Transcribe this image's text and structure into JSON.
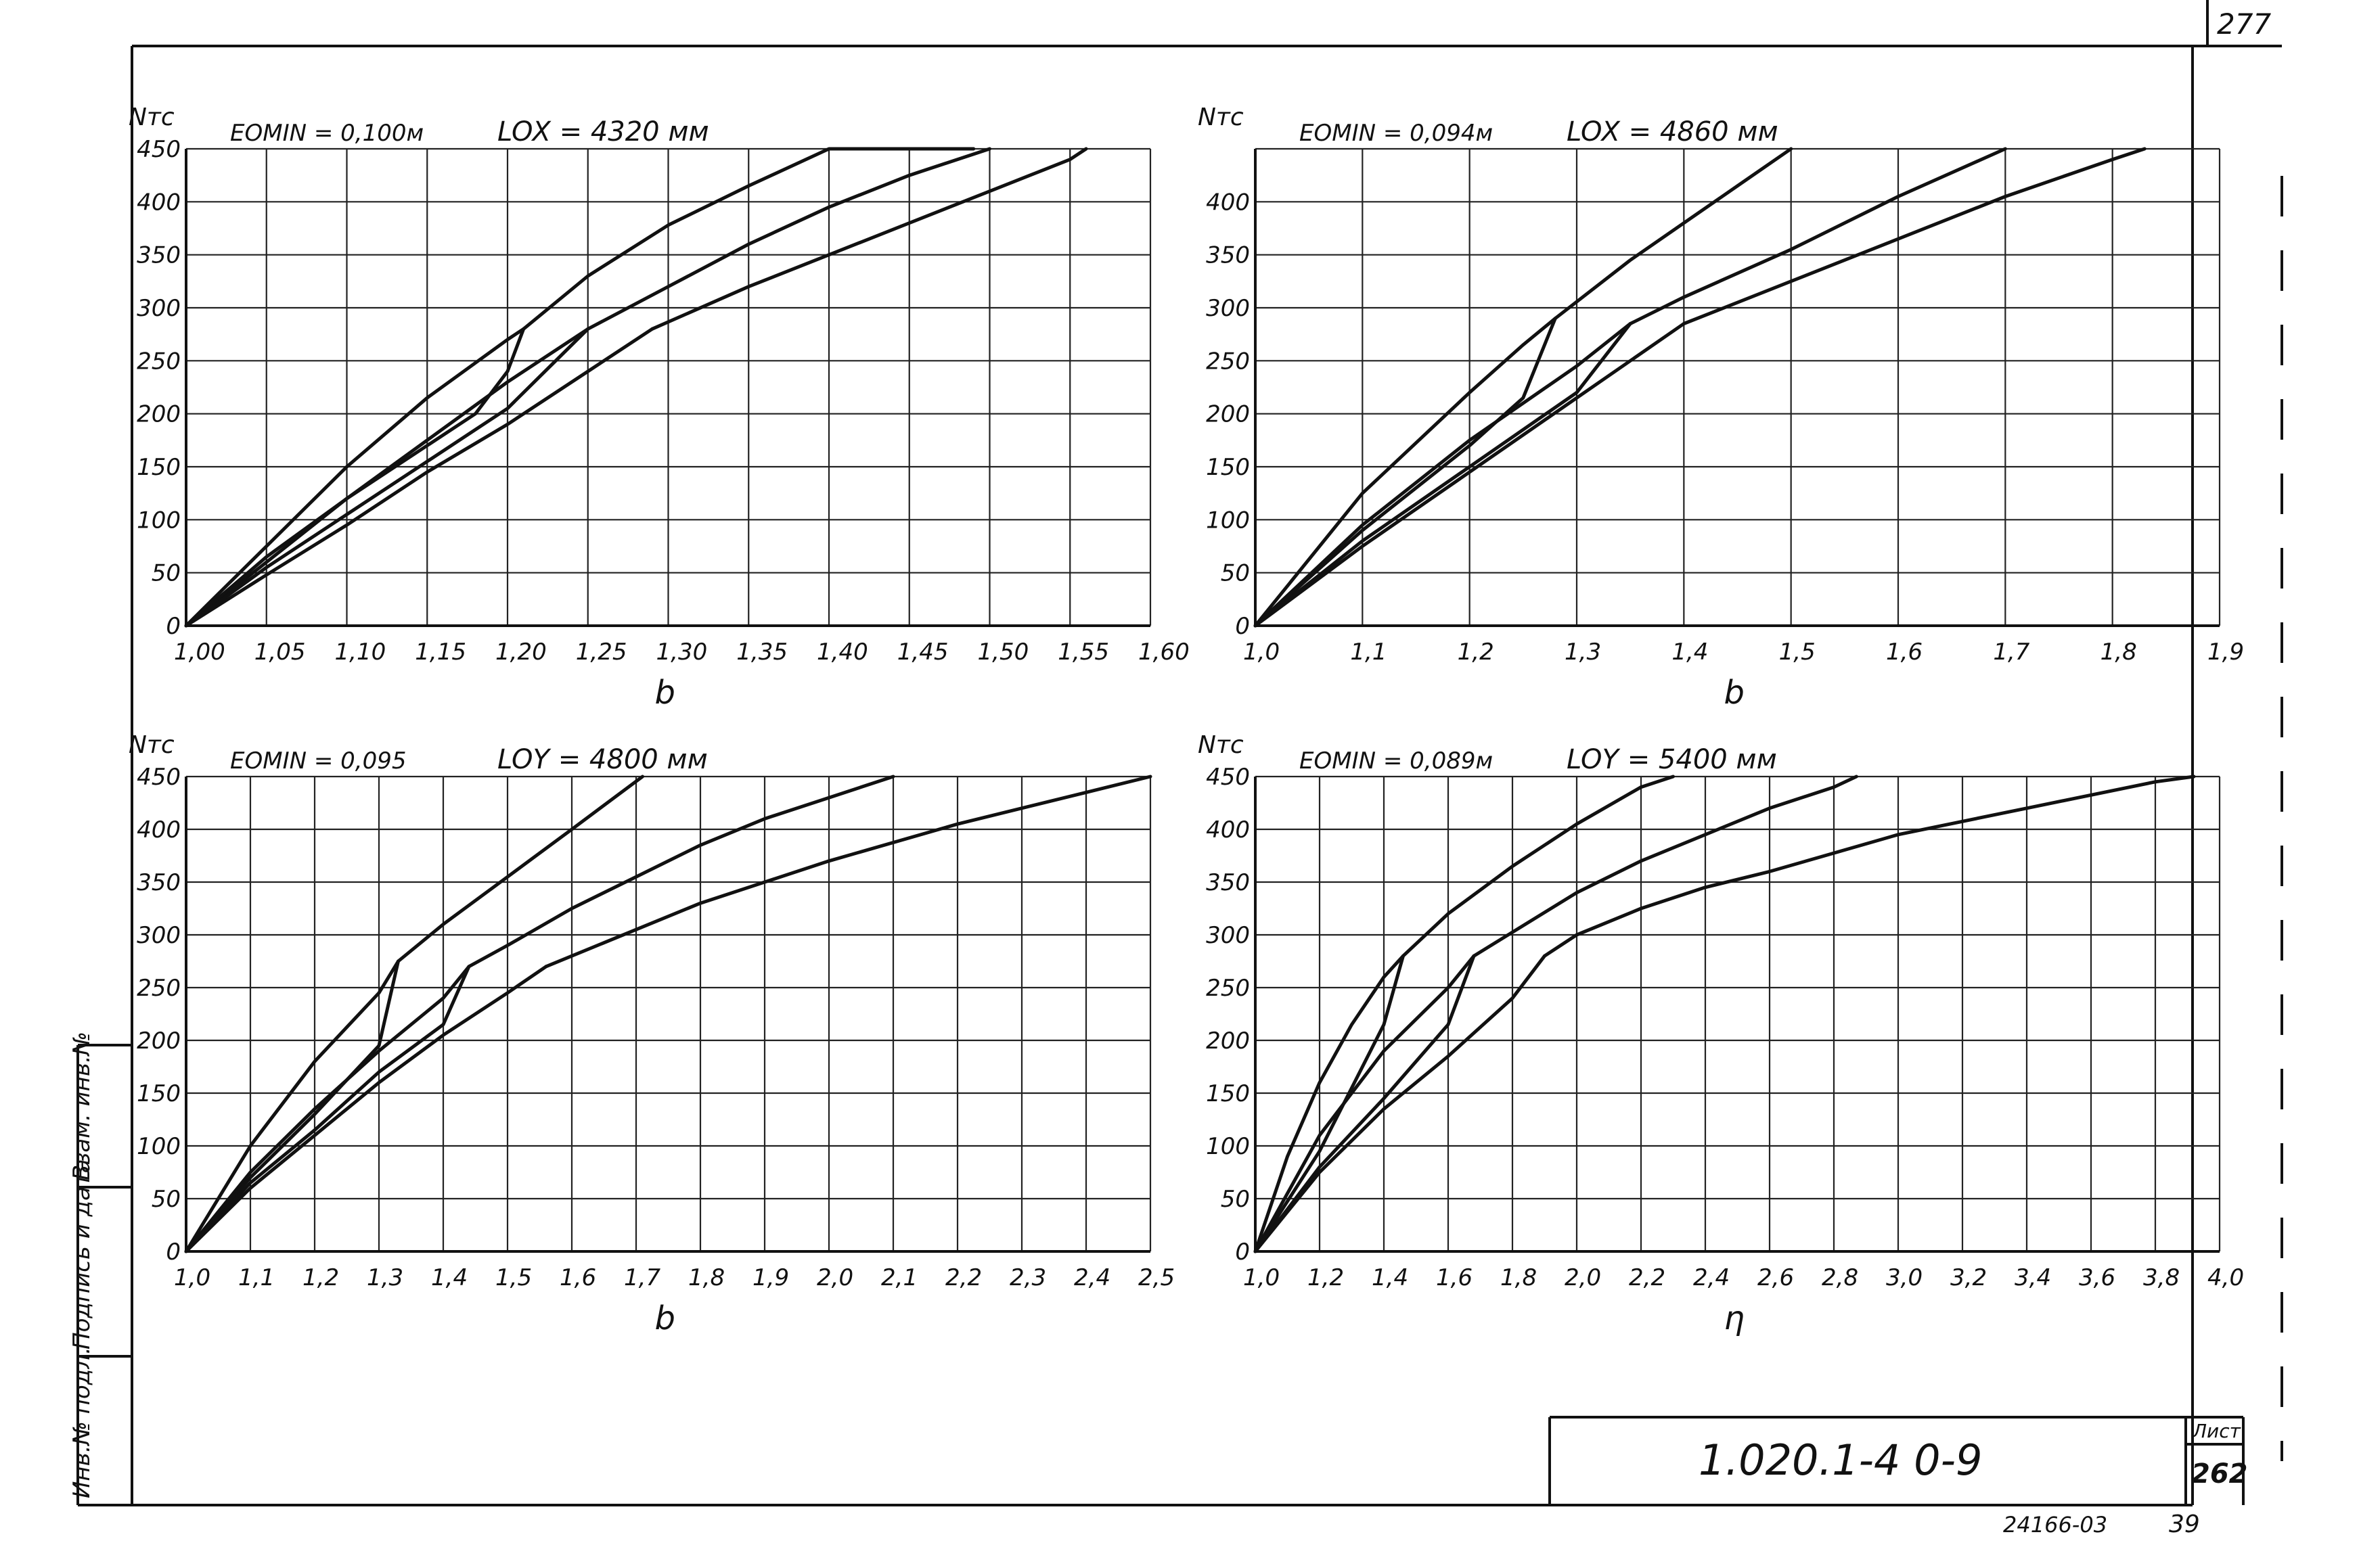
{
  "sheet": {
    "corner_number": "277",
    "doc_code": "1.020.1-4  0-9",
    "sheet_label": "Лист",
    "sheet_number": "262",
    "bottom_code": "24166-03",
    "bottom_page": "39",
    "side_stamp": [
      "Инв.№ подл.",
      "Подпись и дата",
      "Взам. инв.№"
    ],
    "colors": {
      "ink": "#111111",
      "paper": "#ffffff"
    }
  },
  "chart_data": [
    {
      "type": "line",
      "ylabel": "Nтс",
      "param_label": "EOMIN = 0,100м",
      "length_label": "LOX = 4320 мм",
      "xlabel": "b",
      "xlim": [
        1.0,
        1.6
      ],
      "ylim": [
        0,
        450
      ],
      "grid": true,
      "x_ticks": [
        1.0,
        1.05,
        1.1,
        1.15,
        1.2,
        1.25,
        1.3,
        1.35,
        1.4,
        1.45,
        1.5,
        1.55,
        1.6
      ],
      "x_tick_labels": [
        "1,00",
        "1,05",
        "1,10",
        "1,15",
        "1,20",
        "1,25",
        "1,30",
        "1,35",
        "1,40",
        "1,45",
        "1,50",
        "1,55",
        "1,60"
      ],
      "y_ticks": [
        0,
        50,
        100,
        150,
        200,
        250,
        300,
        350,
        400,
        450
      ],
      "y_tick_labels": [
        "0",
        "50",
        "100",
        "150",
        "200",
        "250",
        "300",
        "350",
        "400",
        "450"
      ],
      "series": [
        {
          "x": [
            1.0,
            1.05,
            1.1,
            1.15,
            1.2,
            1.21
          ],
          "y": [
            0,
            75,
            150,
            215,
            270,
            280
          ]
        },
        {
          "x": [
            1.0,
            1.05,
            1.1,
            1.15,
            1.2,
            1.25
          ],
          "y": [
            0,
            60,
            120,
            175,
            230,
            280
          ]
        },
        {
          "x": [
            1.0,
            1.05,
            1.1,
            1.15,
            1.2,
            1.25,
            1.29
          ],
          "y": [
            0,
            48,
            95,
            145,
            190,
            240,
            280
          ]
        },
        {
          "x": [
            1.0,
            1.05,
            1.1,
            1.15,
            1.18,
            1.2,
            1.21
          ],
          "y": [
            0,
            65,
            120,
            170,
            200,
            240,
            280
          ]
        },
        {
          "x": [
            1.0,
            1.05,
            1.1,
            1.15,
            1.2,
            1.23,
            1.25
          ],
          "y": [
            0,
            55,
            105,
            155,
            205,
            250,
            280
          ]
        },
        {
          "x": [
            1.21,
            1.25,
            1.3,
            1.35,
            1.4,
            1.45,
            1.49
          ],
          "y": [
            280,
            330,
            378,
            415,
            450,
            450,
            450
          ]
        },
        {
          "x": [
            1.25,
            1.3,
            1.35,
            1.4,
            1.45,
            1.5
          ],
          "y": [
            280,
            320,
            360,
            395,
            425,
            450
          ]
        },
        {
          "x": [
            1.29,
            1.35,
            1.4,
            1.45,
            1.5,
            1.55,
            1.56
          ],
          "y": [
            280,
            320,
            350,
            380,
            410,
            440,
            450
          ]
        }
      ]
    },
    {
      "type": "line",
      "ylabel": "Nтс",
      "param_label": "EOMIN = 0,094м",
      "length_label": "LOX = 4860 мм",
      "xlabel": "b",
      "xlim": [
        1.0,
        1.9
      ],
      "ylim": [
        0,
        450
      ],
      "grid": true,
      "x_ticks": [
        1.0,
        1.1,
        1.2,
        1.3,
        1.4,
        1.5,
        1.6,
        1.7,
        1.8,
        1.9
      ],
      "x_tick_labels": [
        "1,0",
        "1,1",
        "1,2",
        "1,3",
        "1,4",
        "1,5",
        "1,6",
        "1,7",
        "1,8",
        "1,9"
      ],
      "y_ticks": [
        0,
        50,
        100,
        150,
        200,
        250,
        300,
        350,
        400,
        450
      ],
      "y_tick_labels": [
        "0",
        "50",
        "100",
        "150",
        "200",
        "250",
        "300",
        "350",
        "400",
        ""
      ],
      "series": [
        {
          "x": [
            1.0,
            1.1,
            1.2,
            1.25,
            1.28
          ],
          "y": [
            0,
            125,
            220,
            265,
            290
          ]
        },
        {
          "x": [
            1.0,
            1.1,
            1.2,
            1.3,
            1.35
          ],
          "y": [
            0,
            95,
            175,
            245,
            285
          ]
        },
        {
          "x": [
            1.0,
            1.1,
            1.2,
            1.3,
            1.4
          ],
          "y": [
            0,
            75,
            145,
            215,
            285
          ]
        },
        {
          "x": [
            1.0,
            1.1,
            1.2,
            1.25,
            1.28
          ],
          "y": [
            0,
            90,
            170,
            215,
            290
          ]
        },
        {
          "x": [
            1.0,
            1.1,
            1.2,
            1.3,
            1.35
          ],
          "y": [
            0,
            80,
            150,
            220,
            285
          ]
        },
        {
          "x": [
            1.28,
            1.35,
            1.4,
            1.45,
            1.5
          ],
          "y": [
            290,
            345,
            380,
            415,
            450
          ]
        },
        {
          "x": [
            1.35,
            1.4,
            1.5,
            1.6,
            1.7
          ],
          "y": [
            285,
            310,
            355,
            405,
            450
          ]
        },
        {
          "x": [
            1.4,
            1.5,
            1.6,
            1.7,
            1.8,
            1.83
          ],
          "y": [
            285,
            325,
            365,
            405,
            440,
            450
          ]
        }
      ]
    },
    {
      "type": "line",
      "ylabel": "Nтс",
      "param_label": "EOMIN = 0,095",
      "length_label": "LOY = 4800 мм",
      "xlabel": "b",
      "xlim": [
        1.0,
        2.5
      ],
      "ylim": [
        0,
        450
      ],
      "grid": true,
      "x_ticks": [
        1.0,
        1.1,
        1.2,
        1.3,
        1.4,
        1.5,
        1.6,
        1.7,
        1.8,
        1.9,
        2.0,
        2.1,
        2.2,
        2.3,
        2.4,
        2.5
      ],
      "x_tick_labels": [
        "1,0",
        "1,1",
        "1,2",
        "1,3",
        "1,4",
        "1,5",
        "1,6",
        "1,7",
        "1,8",
        "1,9",
        "2,0",
        "2,1",
        "2,2",
        "2,3",
        "2,4",
        "2,5"
      ],
      "y_ticks": [
        0,
        50,
        100,
        150,
        200,
        250,
        300,
        350,
        400,
        450
      ],
      "y_tick_labels": [
        "0",
        "50",
        "100",
        "150",
        "200",
        "250",
        "300",
        "350",
        "400",
        "450"
      ],
      "series": [
        {
          "x": [
            1.0,
            1.1,
            1.2,
            1.3,
            1.33
          ],
          "y": [
            0,
            100,
            180,
            245,
            275
          ]
        },
        {
          "x": [
            1.0,
            1.1,
            1.2,
            1.3,
            1.4,
            1.44
          ],
          "y": [
            0,
            75,
            135,
            190,
            240,
            270
          ]
        },
        {
          "x": [
            1.0,
            1.1,
            1.2,
            1.3,
            1.4,
            1.5,
            1.56
          ],
          "y": [
            0,
            60,
            110,
            160,
            205,
            245,
            270
          ]
        },
        {
          "x": [
            1.0,
            1.1,
            1.2,
            1.3,
            1.33
          ],
          "y": [
            0,
            70,
            130,
            195,
            275
          ]
        },
        {
          "x": [
            1.0,
            1.1,
            1.2,
            1.3,
            1.4,
            1.44
          ],
          "y": [
            0,
            65,
            115,
            170,
            215,
            270
          ]
        },
        {
          "x": [
            1.33,
            1.4,
            1.5,
            1.6,
            1.71
          ],
          "y": [
            275,
            310,
            355,
            400,
            450
          ]
        },
        {
          "x": [
            1.44,
            1.5,
            1.6,
            1.7,
            1.8,
            1.9,
            2.0,
            2.1
          ],
          "y": [
            270,
            290,
            325,
            355,
            385,
            410,
            430,
            450
          ]
        },
        {
          "x": [
            1.56,
            1.6,
            1.8,
            2.0,
            2.2,
            2.4,
            2.5
          ],
          "y": [
            270,
            280,
            330,
            370,
            405,
            435,
            450
          ]
        }
      ]
    },
    {
      "type": "line",
      "ylabel": "Nтс",
      "param_label": "EOMIN = 0,089м",
      "length_label": "LOY = 5400 мм",
      "xlabel": "η",
      "xlim": [
        1.0,
        4.0
      ],
      "ylim": [
        0,
        450
      ],
      "grid": true,
      "x_ticks": [
        1.0,
        1.2,
        1.4,
        1.6,
        1.8,
        2.0,
        2.2,
        2.4,
        2.6,
        2.8,
        3.0,
        3.2,
        3.4,
        3.6,
        3.8,
        4.0
      ],
      "x_tick_labels": [
        "1,0",
        "1,2",
        "1,4",
        "1,6",
        "1,8",
        "2,0",
        "2,2",
        "2,4",
        "2,6",
        "2,8",
        "3,0",
        "3,2",
        "3,4",
        "3,6",
        "3,8",
        "4,0"
      ],
      "y_ticks": [
        0,
        50,
        100,
        150,
        200,
        250,
        300,
        350,
        400,
        450
      ],
      "y_tick_labels": [
        "0",
        "50",
        "100",
        "150",
        "200",
        "250",
        "300",
        "350",
        "400",
        "450"
      ],
      "series": [
        {
          "x": [
            1.0,
            1.1,
            1.2,
            1.3,
            1.4,
            1.46
          ],
          "y": [
            0,
            90,
            160,
            215,
            260,
            280
          ]
        },
        {
          "x": [
            1.0,
            1.2,
            1.4,
            1.6,
            1.68
          ],
          "y": [
            0,
            110,
            190,
            250,
            280
          ]
        },
        {
          "x": [
            1.0,
            1.2,
            1.4,
            1.6,
            1.8,
            1.9
          ],
          "y": [
            0,
            75,
            135,
            185,
            240,
            280
          ]
        },
        {
          "x": [
            1.0,
            1.2,
            1.3,
            1.4,
            1.46
          ],
          "y": [
            0,
            95,
            155,
            215,
            280
          ]
        },
        {
          "x": [
            1.0,
            1.2,
            1.4,
            1.6,
            1.68
          ],
          "y": [
            0,
            80,
            145,
            215,
            280
          ]
        },
        {
          "x": [
            1.46,
            1.6,
            1.8,
            2.0,
            2.2,
            2.3
          ],
          "y": [
            280,
            320,
            365,
            405,
            440,
            450
          ]
        },
        {
          "x": [
            1.68,
            2.0,
            2.2,
            2.4,
            2.6,
            2.8,
            2.87
          ],
          "y": [
            280,
            340,
            370,
            395,
            420,
            440,
            450
          ]
        },
        {
          "x": [
            1.9,
            2.0,
            2.2,
            2.4,
            2.6,
            3.0,
            3.4,
            3.8,
            3.92
          ],
          "y": [
            280,
            300,
            325,
            345,
            360,
            395,
            420,
            445,
            450
          ]
        }
      ]
    }
  ]
}
